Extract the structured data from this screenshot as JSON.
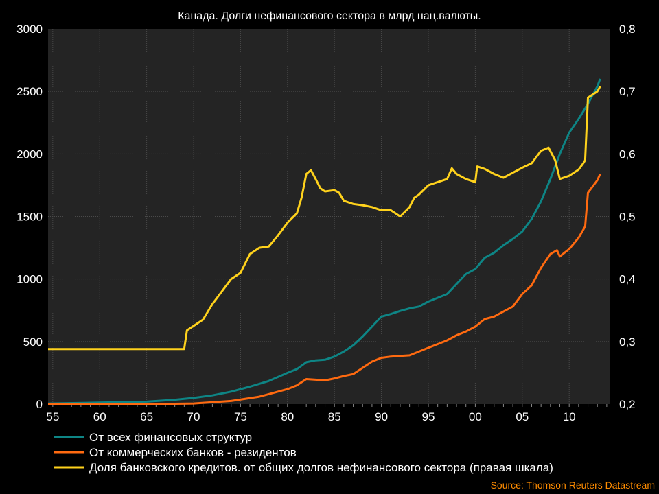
{
  "chart_data": {
    "type": "line",
    "title": "Канада. Долги нефинансового сектора в млрд нац.валюты.",
    "source": "Source: Thomson Reuters Datastream",
    "x_ticks": [
      "55",
      "60",
      "65",
      "70",
      "75",
      "80",
      "85",
      "90",
      "95",
      "00",
      "05",
      "10"
    ],
    "xlim": [
      1954.5,
      2014.3
    ],
    "y_left": {
      "ylim": [
        0,
        3000
      ],
      "ticks": [
        "0",
        "500",
        "1000",
        "1500",
        "2000",
        "2500",
        "3000"
      ],
      "ylabel": ""
    },
    "y_right": {
      "ylim": [
        0.2,
        0.8
      ],
      "ticks": [
        "0,2",
        "0,3",
        "0,4",
        "0,5",
        "0,6",
        "0,7",
        "0,8"
      ],
      "ylabel": ""
    },
    "legend_position": "bottom-left",
    "grid": true,
    "series": [
      {
        "name": "От всех финансовых структур",
        "axis": "left",
        "color": "#0e8585",
        "x": [
          1954.5,
          1960,
          1965,
          1968,
          1970,
          1972,
          1974,
          1976,
          1978,
          1980,
          1981,
          1982,
          1983,
          1984,
          1985,
          1986,
          1987,
          1988,
          1989,
          1990,
          1991,
          1992,
          1993,
          1994,
          1995,
          1996,
          1997,
          1998,
          1999,
          2000,
          2001,
          2002,
          2003,
          2004,
          2005,
          2006,
          2007,
          2008,
          2009,
          2010,
          2011,
          2012,
          2013,
          2013.3
        ],
        "y": [
          5,
          12,
          20,
          35,
          50,
          70,
          100,
          140,
          185,
          250,
          280,
          335,
          350,
          355,
          380,
          420,
          470,
          540,
          620,
          700,
          720,
          745,
          765,
          780,
          820,
          850,
          880,
          960,
          1040,
          1080,
          1170,
          1210,
          1270,
          1320,
          1380,
          1480,
          1620,
          1800,
          2000,
          2170,
          2280,
          2400,
          2540,
          2600
        ]
      },
      {
        "name": "От коммерческих банков - резидентов",
        "axis": "left",
        "color": "#ff6a10",
        "x": [
          1954.5,
          1960,
          1965,
          1970,
          1974,
          1977,
          1980,
          1981,
          1982,
          1983,
          1984,
          1985,
          1986,
          1987,
          1988,
          1989,
          1990,
          1991,
          1992,
          1993,
          1994,
          1995,
          1996,
          1997,
          1998,
          1999,
          2000,
          2001,
          2002,
          2003,
          2004,
          2005,
          2006,
          2007,
          2008,
          2008.7,
          2009,
          2010,
          2011,
          2011.7,
          2012,
          2013,
          2013.3
        ],
        "y": [
          0,
          0,
          0,
          5,
          25,
          60,
          120,
          150,
          200,
          195,
          190,
          205,
          225,
          240,
          290,
          340,
          370,
          380,
          385,
          390,
          420,
          450,
          480,
          510,
          550,
          580,
          620,
          680,
          700,
          740,
          780,
          880,
          950,
          1090,
          1200,
          1230,
          1180,
          1240,
          1330,
          1420,
          1690,
          1790,
          1840
        ]
      },
      {
        "name": "Доля банковского кредитов. от общих долгов нефинансового сектора (правая шкала)",
        "axis": "right",
        "color": "#ffd21c",
        "x": [
          1954.5,
          1969,
          1969.3,
          1970,
          1971,
          1972,
          1973,
          1974,
          1975,
          1976,
          1977,
          1978,
          1979,
          1980,
          1981,
          1981.5,
          1982,
          1982.5,
          1983,
          1983.5,
          1984,
          1985,
          1985.5,
          1986,
          1987,
          1988,
          1989,
          1990,
          1991,
          1992,
          1993,
          1993.5,
          1994,
          1995,
          1996,
          1997,
          1997.5,
          1998,
          1999,
          2000,
          2000.2,
          2001,
          2002,
          2003,
          2004,
          2005,
          2006,
          2007,
          2007.8,
          2008.5,
          2009,
          2010,
          2011,
          2011.5,
          2011.7,
          2012,
          2013,
          2013.3
        ],
        "y": [
          0.288,
          0.288,
          0.318,
          0.325,
          0.335,
          0.36,
          0.38,
          0.4,
          0.41,
          0.44,
          0.45,
          0.452,
          0.47,
          0.49,
          0.505,
          0.53,
          0.568,
          0.574,
          0.56,
          0.545,
          0.54,
          0.542,
          0.538,
          0.525,
          0.52,
          0.518,
          0.515,
          0.51,
          0.51,
          0.5,
          0.515,
          0.53,
          0.535,
          0.55,
          0.555,
          0.56,
          0.577,
          0.568,
          0.56,
          0.555,
          0.58,
          0.576,
          0.568,
          0.562,
          0.57,
          0.578,
          0.585,
          0.605,
          0.61,
          0.59,
          0.56,
          0.565,
          0.575,
          0.585,
          0.59,
          0.69,
          0.7,
          0.708
        ]
      }
    ]
  }
}
